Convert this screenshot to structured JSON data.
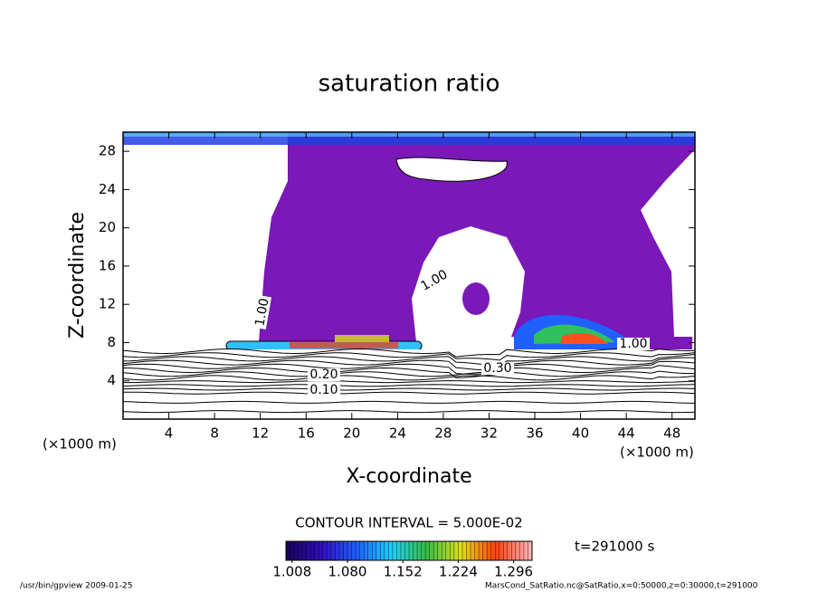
{
  "chart_data": {
    "type": "contour",
    "title": "saturation ratio",
    "x_label": "X-coordinate",
    "y_label": "Z-coordinate",
    "x_unit": "(×1000 m)",
    "y_unit": "(×1000 m)",
    "xlim": [
      0,
      50
    ],
    "ylim": [
      0,
      30
    ],
    "xticks": [
      4,
      8,
      12,
      16,
      20,
      24,
      28,
      32,
      36,
      40,
      44,
      48
    ],
    "yticks": [
      4,
      8,
      12,
      16,
      20,
      24,
      28
    ],
    "contour_labels": [
      {
        "value": 1,
        "label": "1.00"
      },
      {
        "value": 1,
        "label": "1.00"
      },
      {
        "value": 1,
        "label": "1.00"
      },
      {
        "value": 0.3,
        "label": "0.30"
      },
      {
        "value": 0.2,
        "label": "0.20"
      },
      {
        "value": 0.1,
        "label": "0.10"
      }
    ],
    "contour_interval_text": "CONTOUR INTERVAL = 5.000E-02",
    "time_text": "t=291000 s",
    "colorbar": {
      "lim": [
        1.0,
        1.32
      ],
      "ticks": [
        1.008,
        {
          "value": 1.08,
          "label": "1.080"
        },
        1.152,
        1.224,
        1.296
      ],
      "colors": [
        "#1a0060",
        "#3010c0",
        "#2060ff",
        "#20d0ff",
        "#30c040",
        "#e0e020",
        "#ff4010",
        "#ffb0b0"
      ]
    },
    "fill_color": "#7a18b8"
  },
  "footer": {
    "left": "/usr/bin/gpview  2009-01-25",
    "right": "MarsCond_SatRatio.nc@SatRatio,x=0:50000,z=0:30000,t=291000"
  }
}
